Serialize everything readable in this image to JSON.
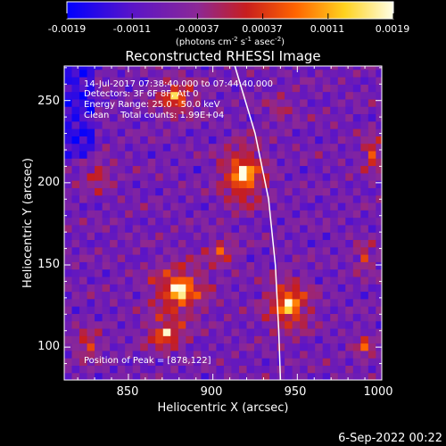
{
  "chart_data": {
    "type": "heatmap",
    "title": "Reconstructed RHESSI Image",
    "xlabel": "Heliocentric X (arcsec)",
    "ylabel": "Heliocentric Y (arcsec)",
    "xlim": [
      812,
      1000
    ],
    "ylim": [
      80,
      271
    ],
    "xticks": [
      850,
      900,
      950,
      1000
    ],
    "yticks": [
      100,
      150,
      200,
      250
    ],
    "colorbar": {
      "min": -0.0019,
      "max": 0.0019,
      "ticks": [
        "-0.0019",
        "-0.0011",
        "-0.00037",
        "0.00037",
        "0.0011",
        "0.0019"
      ],
      "label_parts": [
        "(photons cm",
        "-2",
        " s",
        "-1",
        " asec",
        "-2",
        ")"
      ],
      "colors": [
        "#0000ff",
        "#5a14c8",
        "#8c2896",
        "#c81e1e",
        "#ff6400",
        "#ffd21e",
        "#ffffe6"
      ]
    },
    "annotations": [
      "14-Jul-2017 07:38:40.000 to 07:44:40.000",
      "Detectors: 3F 6F 8F, Att 0",
      "Energy Range: 25.0 - 50.0 keV",
      "Clean    Total counts: 1.99E+04"
    ],
    "peak_label": "Position of Peak = [878,122]",
    "peak": [
      878,
      122
    ],
    "limb_curve": [
      [
        913,
        271
      ],
      [
        925,
        230
      ],
      [
        933,
        190
      ],
      [
        937,
        150
      ],
      [
        939,
        110
      ],
      [
        940,
        80
      ]
    ],
    "sources": [
      {
        "x": 918,
        "y": 205,
        "amp": 1.0,
        "sx": 11,
        "sy": 15
      },
      {
        "x": 880,
        "y": 135,
        "amp": 1.0,
        "sx": 13,
        "sy": 13
      },
      {
        "x": 872,
        "y": 108,
        "amp": 0.8,
        "sx": 10,
        "sy": 8
      },
      {
        "x": 945,
        "y": 126,
        "amp": 0.95,
        "sx": 11,
        "sy": 13
      },
      {
        "x": 878,
        "y": 252,
        "amp": 0.7,
        "sx": 11,
        "sy": 10
      },
      {
        "x": 832,
        "y": 205,
        "amp": 0.45,
        "sx": 8,
        "sy": 8
      },
      {
        "x": 995,
        "y": 218,
        "amp": 0.55,
        "sx": 6,
        "sy": 10
      },
      {
        "x": 905,
        "y": 158,
        "amp": 0.5,
        "sx": 8,
        "sy": 8
      },
      {
        "x": 826,
        "y": 102,
        "amp": 0.55,
        "sx": 7,
        "sy": 8
      },
      {
        "x": 990,
        "y": 155,
        "amp": 0.45,
        "sx": 6,
        "sy": 8
      },
      {
        "x": 990,
        "y": 100,
        "amp": 0.45,
        "sx": 6,
        "sy": 8
      },
      {
        "x": 940,
        "y": 245,
        "amp": 0.3,
        "sx": 8,
        "sy": 8
      }
    ]
  },
  "timestamp": "6-Sep-2022 00:22"
}
